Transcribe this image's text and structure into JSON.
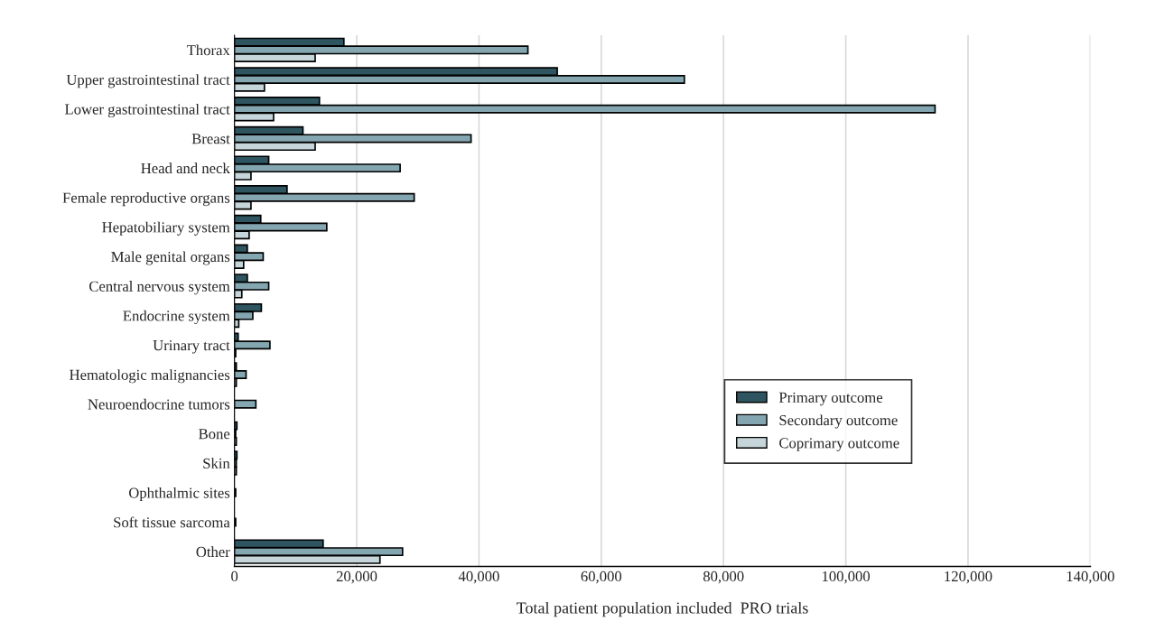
{
  "chart_data": {
    "type": "bar",
    "orientation": "horizontal",
    "xlabel": "Total patient population included  PRO trials",
    "categories": [
      "Thorax",
      "Upper gastrointestinal tract",
      "Lower gastrointestinal tract",
      "Breast",
      "Head and neck",
      "Female reproductive organs",
      "Hepatobiliary system",
      "Male genital organs",
      "Central nervous system",
      "Endocrine system",
      "Urinary tract",
      "Hematologic malignancies",
      "Neuroendocrine tumors",
      "Bone",
      "Skin",
      "Ophthalmic sites",
      "Soft tissue sarcoma",
      "Other"
    ],
    "series": [
      {
        "name": "Primary outcome",
        "color": "#2e5560",
        "values": [
          17900,
          52800,
          13900,
          11200,
          5600,
          8600,
          4300,
          2100,
          2100,
          4400,
          600,
          300,
          null,
          400,
          400,
          null,
          null,
          14500
        ]
      },
      {
        "name": "Secondary outcome",
        "color": "#84a6b0",
        "values": [
          48000,
          73600,
          114600,
          38700,
          27100,
          29400,
          15100,
          4700,
          5600,
          3000,
          5800,
          1900,
          3500,
          200,
          300,
          200,
          200,
          27500
        ]
      },
      {
        "name": "Coprimary outcome",
        "color": "#c5d5da",
        "values": [
          13200,
          4900,
          6400,
          13200,
          2700,
          2700,
          2400,
          1500,
          1200,
          700,
          200,
          300,
          null,
          300,
          300,
          null,
          null,
          23800
        ]
      }
    ],
    "xlim": [
      0,
      140000
    ],
    "xticks": [
      0,
      {
        "value": 20000,
        "label": "20,000"
      },
      {
        "value": 40000,
        "label": "40,000"
      },
      {
        "value": 60000,
        "label": "60,000"
      },
      {
        "value": 80000,
        "label": "80,000"
      },
      {
        "value": 100000,
        "label": "100,000"
      },
      {
        "value": 120000,
        "label": "120,000"
      },
      {
        "value": 140000,
        "label": "140,000"
      }
    ],
    "grid": "x",
    "legend": "bottom right"
  }
}
